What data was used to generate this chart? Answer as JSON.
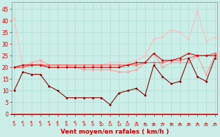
{
  "background_color": "#cceee8",
  "grid_color": "#aaddcc",
  "xlabel": "Vent moyen/en rafales ( km/h )",
  "xlabel_color": "#cc0000",
  "tick_color": "#cc0000",
  "xlabel_fontsize": 6.5,
  "yticks": [
    0,
    5,
    10,
    15,
    20,
    25,
    30,
    35,
    40,
    45
  ],
  "ytick_fontsize": 5.5,
  "xtick_fontsize": 4.5,
  "xticks": [
    0,
    1,
    2,
    3,
    4,
    5,
    6,
    7,
    8,
    9,
    10,
    11,
    12,
    13,
    14,
    15,
    16,
    17,
    18,
    19,
    20,
    21,
    22,
    23
  ],
  "xlim": [
    -0.3,
    23.3
  ],
  "ylim": [
    0,
    48
  ],
  "series": [
    {
      "color": "#ffbbbb",
      "x": [
        0,
        1,
        2,
        3,
        4,
        5,
        6,
        7,
        8,
        9,
        10,
        11,
        12,
        13,
        14,
        15,
        16,
        17,
        18,
        19,
        20,
        21,
        22,
        23
      ],
      "y": [
        41,
        20,
        21,
        22,
        20,
        20,
        20,
        20,
        20,
        20,
        21,
        22,
        22,
        22,
        23,
        25,
        32,
        33,
        36,
        35,
        32,
        44,
        31,
        33
      ],
      "marker": "D",
      "markersize": 1.5,
      "linewidth": 0.8
    },
    {
      "color": "#ff9999",
      "x": [
        0,
        1,
        2,
        3,
        4,
        5,
        6,
        7,
        8,
        9,
        10,
        11,
        12,
        13,
        14,
        15,
        16,
        17,
        18,
        19,
        20,
        21,
        22,
        23
      ],
      "y": [
        20,
        20,
        22,
        23,
        21,
        21,
        21,
        20,
        19,
        19,
        19,
        19,
        18,
        18,
        19,
        22,
        26,
        20,
        22,
        22,
        22,
        25,
        17,
        25
      ],
      "marker": "D",
      "markersize": 1.5,
      "linewidth": 0.8
    },
    {
      "color": "#ff5555",
      "x": [
        0,
        1,
        2,
        3,
        4,
        5,
        6,
        7,
        8,
        9,
        10,
        11,
        12,
        13,
        14,
        15,
        16,
        17,
        18,
        19,
        20,
        21,
        22,
        23
      ],
      "y": [
        20,
        20,
        21,
        21,
        21,
        21,
        21,
        21,
        21,
        21,
        21,
        21,
        21,
        21,
        21,
        22,
        22,
        22,
        23,
        23,
        24,
        25,
        25,
        26
      ],
      "marker": "D",
      "markersize": 1.5,
      "linewidth": 0.8
    },
    {
      "color": "#cc0000",
      "x": [
        0,
        1,
        2,
        3,
        4,
        5,
        6,
        7,
        8,
        9,
        10,
        11,
        12,
        13,
        14,
        15,
        16,
        17,
        18,
        19,
        20,
        21,
        22,
        23
      ],
      "y": [
        20,
        21,
        21,
        21,
        20,
        20,
        20,
        20,
        20,
        20,
        20,
        20,
        20,
        21,
        22,
        22,
        26,
        23,
        23,
        24,
        26,
        25,
        25,
        25
      ],
      "marker": "D",
      "markersize": 1.5,
      "linewidth": 0.8
    },
    {
      "color": "#880000",
      "x": [
        0,
        1,
        2,
        3,
        4,
        5,
        6,
        7,
        8,
        9,
        10,
        11,
        12,
        13,
        14,
        15,
        16,
        17,
        18,
        19,
        20,
        21,
        22,
        23
      ],
      "y": [
        10,
        18,
        17,
        17,
        12,
        10,
        7,
        7,
        7,
        7,
        7,
        4,
        9,
        10,
        11,
        8,
        21,
        16,
        13,
        14,
        24,
        16,
        14,
        24
      ],
      "marker": "D",
      "markersize": 1.5,
      "linewidth": 0.8
    }
  ],
  "wind_arrows": {
    "x": [
      0,
      1,
      2,
      3,
      4,
      5,
      6,
      7,
      8,
      9,
      10,
      11,
      12,
      13,
      14,
      15,
      16,
      17,
      18,
      19,
      20,
      21,
      22,
      23
    ],
    "angles_deg": [
      225,
      225,
      225,
      225,
      225,
      225,
      225,
      225,
      225,
      225,
      90,
      225,
      225,
      225,
      45,
      0,
      0,
      0,
      0,
      0,
      0,
      0,
      0,
      0
    ]
  }
}
